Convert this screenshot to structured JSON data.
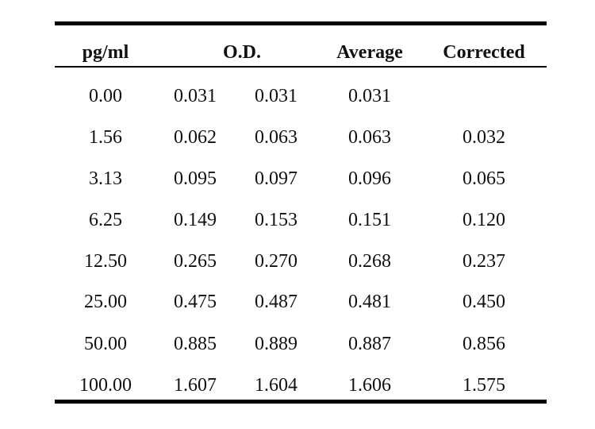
{
  "table": {
    "headers": {
      "pg_ml": "pg/ml",
      "od": "O.D.",
      "average": "Average",
      "corrected": "Corrected"
    },
    "rows": [
      {
        "pg_ml": "0.00",
        "od1": "0.031",
        "od2": "0.031",
        "average": "0.031",
        "corrected": ""
      },
      {
        "pg_ml": "1.56",
        "od1": "0.062",
        "od2": "0.063",
        "average": "0.063",
        "corrected": "0.032"
      },
      {
        "pg_ml": "3.13",
        "od1": "0.095",
        "od2": "0.097",
        "average": "0.096",
        "corrected": "0.065"
      },
      {
        "pg_ml": "6.25",
        "od1": "0.149",
        "od2": "0.153",
        "average": "0.151",
        "corrected": "0.120"
      },
      {
        "pg_ml": "12.50",
        "od1": "0.265",
        "od2": "0.270",
        "average": "0.268",
        "corrected": "0.237"
      },
      {
        "pg_ml": "25.00",
        "od1": "0.475",
        "od2": "0.487",
        "average": "0.481",
        "corrected": "0.450"
      },
      {
        "pg_ml": "50.00",
        "od1": "0.885",
        "od2": "0.889",
        "average": "0.887",
        "corrected": "0.856"
      },
      {
        "pg_ml": "100.00",
        "od1": "1.607",
        "od2": "1.604",
        "average": "1.606",
        "corrected": "1.575"
      }
    ]
  }
}
